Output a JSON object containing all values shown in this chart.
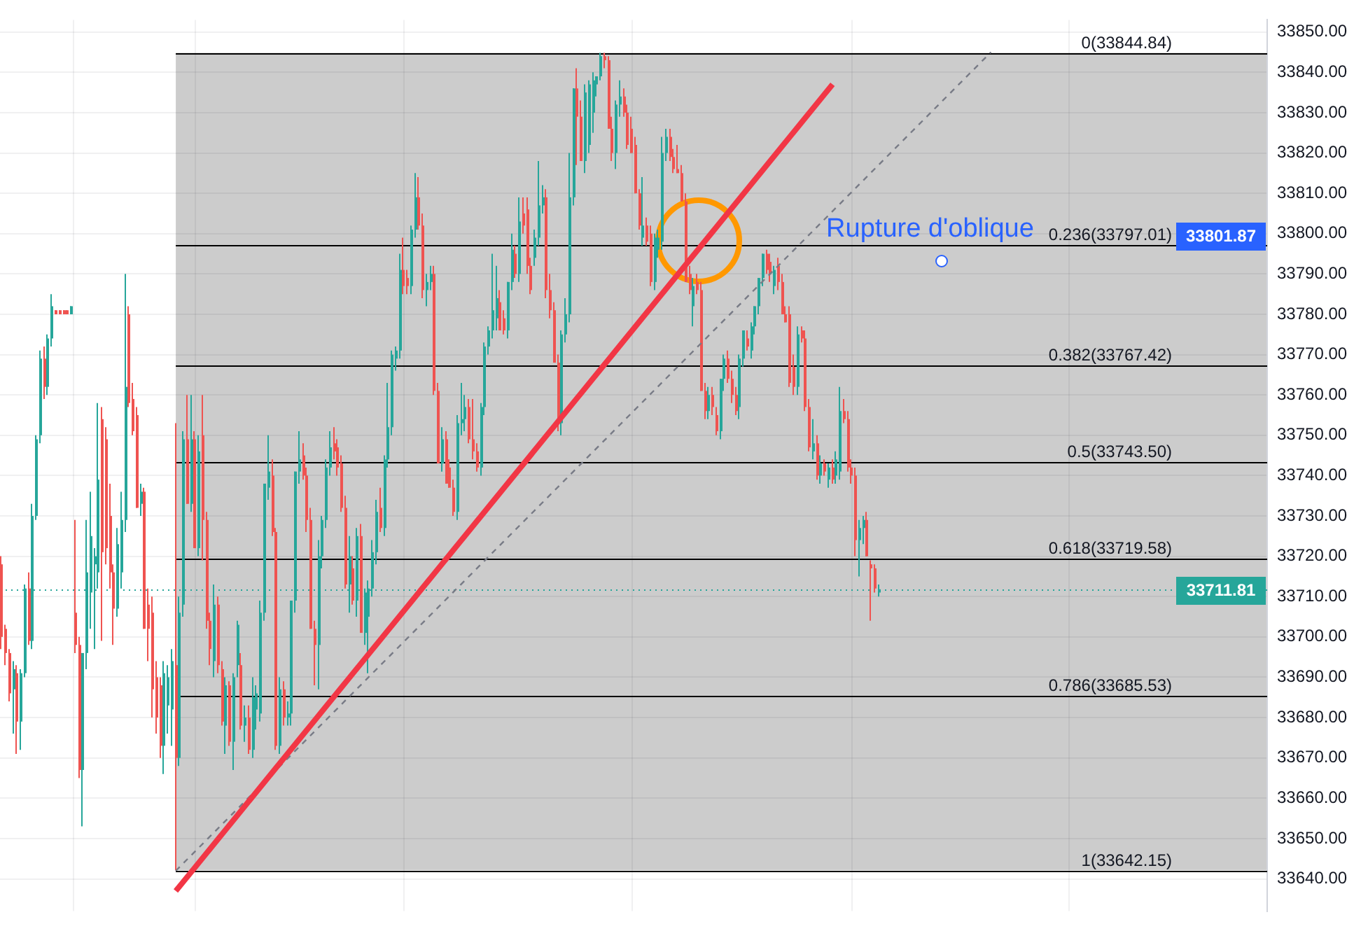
{
  "chart_data": {
    "type": "candlestick",
    "categories": [
      null,
      null,
      null,
      null,
      null,
      null,
      null,
      null,
      null,
      null,
      null,
      null,
      null,
      null,
      null,
      null,
      null,
      null,
      null,
      null,
      null,
      null,
      null,
      null,
      null,
      null,
      null,
      null,
      null,
      null,
      null,
      null,
      null,
      null,
      null,
      null,
      null,
      null,
      null,
      null,
      null,
      null,
      null,
      null,
      null,
      null,
      null,
      null,
      null,
      null,
      null,
      null,
      null,
      null,
      null,
      null,
      null,
      null,
      null,
      null,
      null,
      null,
      null,
      null,
      null,
      null,
      null,
      null,
      null,
      null,
      null,
      null,
      null,
      null,
      null,
      null,
      null,
      null,
      null,
      null,
      null,
      null,
      null,
      null,
      null,
      null,
      null,
      null,
      null,
      null,
      null,
      null,
      null,
      null,
      null,
      null,
      null,
      null,
      null,
      null,
      null,
      null,
      null,
      null,
      null,
      null,
      null,
      null,
      null,
      null,
      null,
      null,
      null,
      null,
      null,
      null,
      null,
      null,
      null,
      null,
      null,
      null,
      null,
      null,
      null,
      null,
      null,
      null,
      null,
      null,
      null,
      null,
      null,
      null,
      null,
      null,
      null,
      null,
      null,
      null,
      null,
      null,
      null,
      null,
      null,
      null,
      null,
      null,
      null,
      null,
      null,
      null,
      null,
      null,
      null,
      null,
      null,
      null,
      null,
      null,
      null,
      null,
      null,
      null,
      null,
      null,
      null,
      null,
      null,
      null,
      null,
      null,
      null,
      null,
      null,
      null,
      null,
      null,
      null,
      null,
      null,
      null,
      null,
      null,
      null,
      null,
      null,
      null,
      null,
      null,
      null,
      null,
      null,
      null,
      null,
      null,
      null,
      null,
      null,
      null,
      null,
      null,
      null,
      null,
      null,
      null,
      null,
      null,
      null,
      null,
      null,
      null,
      null,
      null,
      null,
      null,
      null,
      null,
      null,
      null,
      null,
      null,
      null,
      null,
      null,
      null,
      null,
      null,
      null,
      null,
      null,
      null,
      null,
      null,
      null,
      null,
      null,
      null,
      null,
      null,
      null,
      null,
      null,
      null,
      null,
      null,
      null,
      null,
      null,
      null,
      null,
      null,
      null,
      null,
      null,
      null,
      null,
      null,
      null,
      null,
      null,
      null,
      null,
      null,
      null,
      null,
      null,
      null,
      null,
      null,
      null,
      null,
      null,
      null,
      null,
      null,
      null,
      null,
      null,
      null,
      null,
      null,
      null,
      null,
      null,
      null,
      null,
      null,
      null,
      null,
      null,
      null,
      null,
      null,
      null,
      null,
      null,
      null,
      null,
      null,
      null,
      null,
      null,
      null,
      null,
      null,
      null,
      null,
      null,
      null,
      null,
      null,
      null,
      null,
      null,
      null,
      null,
      null,
      null,
      null,
      null,
      null,
      null,
      null,
      null,
      null,
      null,
      null
    ],
    "ohlc": [
      [
        33718,
        33720,
        33697,
        33700
      ],
      [
        33702,
        33703,
        33693,
        33696
      ],
      [
        33696,
        33697,
        33684,
        33686
      ],
      [
        33687,
        33694,
        33676,
        33692
      ],
      [
        33691,
        33693,
        33671,
        33679
      ],
      [
        33679,
        33692,
        33672,
        33691
      ],
      [
        33691,
        33713,
        33690,
        33712
      ],
      [
        33712,
        33716,
        33698,
        33699
      ],
      [
        33699,
        33733,
        33697,
        33730
      ],
      [
        33730,
        33750,
        33729,
        33749
      ],
      [
        33750,
        33771,
        33748,
        33769
      ],
      [
        33769,
        33772,
        33759,
        33762
      ],
      [
        33762,
        33775,
        33760,
        33774
      ],
      [
        33774,
        33785,
        33772,
        33782
      ],
      [
        33781,
        33781,
        33780,
        33780
      ],
      [
        33781,
        33781,
        33780,
        33780
      ],
      [
        33781,
        33781,
        33780,
        33780
      ],
      [
        33781,
        33781,
        33780,
        33780
      ],
      [
        33780,
        33782,
        33780,
        33782
      ],
      [
        33706,
        33729,
        33696,
        33698
      ],
      [
        33698,
        33700,
        33665,
        33667
      ],
      [
        33667,
        33696,
        33653,
        33696
      ],
      [
        33696,
        33729,
        33692,
        33716
      ],
      [
        33711,
        33736,
        33702,
        33725
      ],
      [
        33718,
        33722,
        33697,
        33720
      ],
      [
        33716,
        33758,
        33712,
        33739
      ],
      [
        33754,
        33757,
        33699,
        33721
      ],
      [
        33749,
        33752,
        33718,
        33722
      ],
      [
        33730,
        33738,
        33712,
        33716
      ],
      [
        33716,
        33718,
        33698,
        33707
      ],
      [
        33707,
        33727,
        33705,
        33723
      ],
      [
        33716,
        33736,
        33712,
        33729
      ],
      [
        33729,
        33790,
        33726,
        33762
      ],
      [
        33780,
        33782,
        33757,
        33758
      ],
      [
        33759,
        33763,
        33750,
        33751
      ],
      [
        33755,
        33757,
        33732,
        33732
      ],
      [
        33733,
        33738,
        33730,
        33736
      ],
      [
        33736,
        33737,
        33702,
        33702
      ],
      [
        33708,
        33712,
        33694,
        33702
      ],
      [
        33706,
        33710,
        33680,
        33687
      ],
      [
        33690,
        33694,
        33676,
        33680
      ],
      [
        33688,
        33690,
        33670,
        33673
      ],
      [
        33673,
        33694,
        33666,
        33691
      ],
      [
        33683,
        33693,
        33676,
        33690
      ],
      [
        33682,
        33697,
        33673,
        33694
      ],
      [
        33693,
        33753,
        33642.15,
        33670
      ],
      [
        33670,
        33710,
        33668,
        33706
      ],
      [
        33708,
        33751,
        33705,
        33749
      ],
      [
        33749,
        33760,
        33733,
        33733
      ],
      [
        33733,
        33760,
        33731,
        33749
      ],
      [
        33749,
        33751,
        33722,
        33722
      ],
      [
        33722,
        33750,
        33720,
        33746
      ],
      [
        33750,
        33760,
        33719,
        33729
      ],
      [
        33729,
        33731,
        33702,
        33704
      ],
      [
        33704,
        33706,
        33693,
        33697
      ],
      [
        33694,
        33713,
        33690,
        33708
      ],
      [
        33708,
        33710,
        33691,
        33693
      ],
      [
        33692,
        33694,
        33678,
        33679
      ],
      [
        33678,
        33690,
        33671,
        33688
      ],
      [
        33688,
        33689,
        33673,
        33674
      ],
      [
        33674,
        33691,
        33667,
        33690
      ],
      [
        33693,
        33704,
        33690,
        33703
      ],
      [
        33693,
        33696,
        33677,
        33678
      ],
      [
        33678,
        33683,
        33674,
        33680
      ],
      [
        33680,
        33683,
        33671,
        33672
      ],
      [
        33672,
        33690,
        33670,
        33685
      ],
      [
        33682,
        33688,
        33677,
        33686
      ],
      [
        33681,
        33709,
        33679,
        33706
      ],
      [
        33706,
        33738,
        33704,
        33738
      ],
      [
        33737,
        33750,
        33734,
        33741
      ],
      [
        33740,
        33744,
        33725,
        33726
      ],
      [
        33726,
        33727,
        33672,
        33673
      ],
      [
        33673,
        33690,
        33671,
        33687
      ],
      [
        33687,
        33689,
        33678,
        33680
      ],
      [
        33680,
        33684,
        33678,
        33681
      ],
      [
        33681,
        33709,
        33678,
        33709
      ],
      [
        33709,
        33741,
        33706,
        33741
      ],
      [
        33741,
        33751,
        33738,
        33744
      ],
      [
        33745,
        33748,
        33739,
        33740
      ],
      [
        33740,
        33742,
        33726,
        33729
      ],
      [
        33729,
        33732,
        33702,
        33702
      ],
      [
        33702,
        33704,
        33688,
        33698
      ],
      [
        33698,
        33724,
        33687,
        33720
      ],
      [
        33720,
        33730,
        33717,
        33729
      ],
      [
        33729,
        33744,
        33727,
        33742
      ],
      [
        33742,
        33751,
        33740,
        33747
      ],
      [
        33748,
        33752,
        33744,
        33746
      ],
      [
        33747,
        33749,
        33740,
        33742
      ],
      [
        33743,
        33745,
        33731,
        33732
      ],
      [
        33732,
        33735,
        33712,
        33713
      ],
      [
        33713,
        33725,
        33706,
        33720
      ],
      [
        33717,
        33720,
        33708,
        33709
      ],
      [
        33709,
        33727,
        33705,
        33725
      ],
      [
        33725,
        33728,
        33701,
        33701
      ],
      [
        33701,
        33712,
        33698,
        33711
      ],
      [
        33705,
        33714,
        33691,
        33712
      ],
      [
        33712,
        33724,
        33710,
        33721
      ],
      [
        33721,
        33734,
        33718,
        33731
      ],
      [
        33732,
        33737,
        33726,
        33727
      ],
      [
        33727,
        33745,
        33725,
        33744
      ],
      [
        33744,
        33763,
        33742,
        33752
      ],
      [
        33752,
        33771,
        33750,
        33770
      ],
      [
        33769,
        33772,
        33766,
        33771
      ],
      [
        33771,
        33795,
        33769,
        33791
      ],
      [
        33791,
        33799,
        33785,
        33787
      ],
      [
        33789,
        33791,
        33785,
        33787
      ],
      [
        33787,
        33802,
        33785,
        33801
      ],
      [
        33801,
        33815,
        33799,
        33809
      ],
      [
        33809,
        33814,
        33801,
        33802
      ],
      [
        33802,
        33805,
        33784,
        33786
      ],
      [
        33786,
        33790,
        33782,
        33788
      ],
      [
        33788,
        33792,
        33786,
        33790
      ],
      [
        33790,
        33792,
        33760,
        33761
      ],
      [
        33761,
        33763,
        33743,
        33743
      ],
      [
        33743,
        33752,
        33741,
        33749
      ],
      [
        33749,
        33751,
        33738,
        33738
      ],
      [
        33742,
        33744,
        33737,
        33737
      ],
      [
        33737,
        33739,
        33730,
        33731
      ],
      [
        33731,
        33755,
        33729,
        33753
      ],
      [
        33753,
        33763,
        33750,
        33754
      ],
      [
        33754,
        33760,
        33751,
        33757
      ],
      [
        33757,
        33759,
        33748,
        33749
      ],
      [
        33749,
        33759,
        33744,
        33746
      ],
      [
        33746,
        33748,
        33741,
        33742
      ],
      [
        33742,
        33758,
        33740,
        33757
      ],
      [
        33757,
        33773,
        33755,
        33772
      ],
      [
        33772,
        33777,
        33770,
        33776
      ],
      [
        33776,
        33795,
        33774,
        33781
      ],
      [
        33779,
        33792,
        33776,
        33784
      ],
      [
        33783,
        33786,
        33776,
        33776
      ],
      [
        33779,
        33781,
        33775,
        33776
      ],
      [
        33776,
        33788,
        33774,
        33788
      ],
      [
        33788,
        33800,
        33786,
        33796
      ],
      [
        33795,
        33797,
        33789,
        33790
      ],
      [
        33790,
        33809,
        33788,
        33803
      ],
      [
        33805,
        33809,
        33800,
        33802
      ],
      [
        33806,
        33809,
        33790,
        33792
      ],
      [
        33792,
        33794,
        33785,
        33786
      ],
      [
        33794,
        33801,
        33792,
        33799
      ],
      [
        33799,
        33818,
        33797,
        33807
      ],
      [
        33807,
        33812,
        33805,
        33809
      ],
      [
        33809,
        33811,
        33784,
        33786
      ],
      [
        33786,
        33790,
        33779,
        33781
      ],
      [
        33781,
        33783,
        33768,
        33768
      ],
      [
        33768,
        33770,
        33751,
        33753
      ],
      [
        33753,
        33776,
        33750,
        33775
      ],
      [
        33775,
        33784,
        33773,
        33780
      ],
      [
        33780,
        33820,
        33778,
        33809
      ],
      [
        33809,
        33836,
        33807,
        33836
      ],
      [
        33836,
        33841,
        33817,
        33829
      ],
      [
        33829,
        33833,
        33818,
        33818
      ],
      [
        33818,
        33837,
        33815,
        33835
      ],
      [
        33822,
        33838,
        33820,
        33837
      ],
      [
        33830,
        33840,
        33825,
        33838
      ],
      [
        33837,
        33839,
        33834,
        33839
      ],
      [
        33839,
        33844.84,
        33838,
        33844
      ],
      [
        33844,
        33844.84,
        33841,
        33843
      ],
      [
        33843,
        33844,
        33826,
        33826
      ],
      [
        33826,
        33829,
        33818,
        33820
      ],
      [
        33820,
        33833,
        33816,
        33832
      ],
      [
        33832,
        33838,
        33829,
        33834
      ],
      [
        33834,
        33836,
        33829,
        33830
      ],
      [
        33830,
        33832,
        33821,
        33822
      ],
      [
        33826,
        33829,
        33820,
        33820
      ],
      [
        33822,
        33824,
        33810,
        33810
      ],
      [
        33810,
        33811,
        33801,
        33802
      ],
      [
        33799,
        33814,
        33797,
        33802
      ],
      [
        33802,
        33804,
        33797,
        33798
      ],
      [
        33800,
        33802,
        33787,
        33788
      ],
      [
        33788,
        33800,
        33786,
        33799
      ],
      [
        33796,
        33801,
        33794,
        33799
      ],
      [
        33798,
        33824,
        33796,
        33820
      ],
      [
        33820,
        33826,
        33818,
        33824
      ],
      [
        33824,
        33826,
        33818,
        33819
      ],
      [
        33819,
        33821,
        33815,
        33816
      ],
      [
        33816,
        33822,
        33815,
        33815
      ],
      [
        33815,
        33817,
        33808,
        33808
      ],
      [
        33808,
        33810,
        33788,
        33788
      ],
      [
        33790,
        33792,
        33785,
        33786
      ],
      [
        33782,
        33789,
        33777,
        33787
      ],
      [
        33788,
        33790,
        33785,
        33786
      ],
      [
        33786,
        33788,
        33761,
        33761
      ],
      [
        33761,
        33763,
        33754,
        33756
      ],
      [
        33756,
        33762,
        33754,
        33760
      ],
      [
        33760,
        33762,
        33755,
        33757
      ],
      [
        33755,
        33757,
        33750,
        33751
      ],
      [
        33751,
        33764,
        33749,
        33764
      ],
      [
        33764,
        33770,
        33761,
        33769
      ],
      [
        33769,
        33771,
        33763,
        33764
      ],
      [
        33764,
        33766,
        33758,
        33760
      ],
      [
        33760,
        33762,
        33755,
        33756
      ],
      [
        33757,
        33770,
        33754,
        33769
      ],
      [
        33769,
        33776,
        33767,
        33776
      ],
      [
        33774,
        33776,
        33771,
        33772
      ],
      [
        33771,
        33778,
        33769,
        33777
      ],
      [
        33777,
        33782,
        33775,
        33782
      ],
      [
        33782,
        33789,
        33780,
        33789
      ],
      [
        33789,
        33795,
        33787,
        33795
      ],
      [
        33795,
        33796,
        33790,
        33791
      ],
      [
        33793,
        33795,
        33788,
        33790
      ],
      [
        33787,
        33792,
        33785,
        33791
      ],
      [
        33792,
        33794,
        33786,
        33788
      ],
      [
        33788,
        33790,
        33780,
        33780
      ],
      [
        33780,
        33782,
        33778,
        33778
      ],
      [
        33780,
        33782,
        33762,
        33763
      ],
      [
        33767,
        33770,
        33760,
        33762
      ],
      [
        33762,
        33777,
        33760,
        33775
      ],
      [
        33776,
        33777,
        33773,
        33774
      ],
      [
        33774,
        33776,
        33756,
        33757
      ],
      [
        33757,
        33759,
        33746,
        33747
      ],
      [
        33746,
        33754,
        33744,
        33748
      ],
      [
        33748,
        33750,
        33739,
        33740
      ],
      [
        33740,
        33745,
        33738,
        33743
      ],
      [
        33743,
        33744,
        33740,
        33741
      ],
      [
        33739,
        33743,
        33737,
        33742
      ],
      [
        33742,
        33744,
        33738,
        33739
      ],
      [
        33740,
        33746,
        33738,
        33744
      ],
      [
        33741,
        33762,
        33739,
        33756
      ],
      [
        33756,
        33759,
        33753,
        33754
      ],
      [
        33754,
        33756,
        33741,
        33742
      ],
      [
        33742,
        33744,
        33738,
        33740
      ],
      [
        33740,
        33742,
        33720,
        33724
      ],
      [
        33724,
        33729,
        33715,
        33727
      ],
      [
        33727,
        33730,
        33723,
        33729
      ],
      [
        33729,
        33731,
        33720,
        33720
      ],
      [
        33718,
        33719,
        33704,
        33717
      ],
      [
        33717,
        33718,
        33711,
        33712
      ],
      [
        33711,
        33713,
        33710,
        33711.81
      ],
      null,
      null,
      null,
      null,
      null,
      null,
      null,
      null,
      null,
      null,
      null,
      null,
      null,
      null,
      null,
      null,
      null,
      null,
      null,
      null,
      null,
      null,
      null,
      null,
      null,
      null,
      null,
      null,
      null,
      null,
      null,
      null,
      null,
      null,
      null,
      null,
      null,
      null,
      null,
      null,
      null,
      null,
      null,
      null,
      null,
      null,
      null,
      null,
      null,
      null,
      null,
      null,
      null,
      null,
      null,
      null,
      null,
      null,
      null,
      null,
      null,
      null,
      null,
      null,
      null,
      null,
      null,
      null,
      null,
      null,
      null,
      null,
      null,
      null,
      null,
      null,
      null,
      null,
      null,
      null,
      null,
      null,
      null,
      null,
      null,
      null,
      null,
      null,
      null,
      null,
      null,
      null,
      null,
      null,
      null,
      null,
      null,
      null,
      null,
      null
    ],
    "series": [
      {
        "type": "line",
        "color": "#f23645",
        "values": [
          null,
          null,
          null,
          null,
          null,
          null,
          null,
          null,
          null,
          null,
          null,
          null,
          null,
          null,
          null,
          null,
          null,
          null,
          null,
          null,
          null,
          null,
          null,
          null,
          null,
          null,
          null,
          null,
          null,
          null,
          null,
          null,
          null,
          null,
          null,
          null,
          null,
          null,
          null,
          null,
          null,
          null,
          null,
          null,
          null,
          33637,
          null,
          null,
          null,
          null,
          null,
          null,
          null,
          null,
          null,
          null,
          null,
          null,
          null,
          null,
          null,
          null,
          null,
          null,
          null,
          null,
          null,
          null,
          null,
          null,
          null,
          null,
          null,
          null,
          null,
          null,
          null,
          null,
          null,
          null,
          null,
          null,
          null,
          null,
          null,
          null,
          null,
          null,
          null,
          null,
          null,
          null,
          null,
          null,
          null,
          null,
          null,
          null,
          null,
          null,
          null,
          null,
          null,
          null,
          null,
          null,
          null,
          null,
          null,
          null,
          null,
          null,
          null,
          null,
          null,
          null,
          null,
          null,
          null,
          null,
          null,
          null,
          null,
          null,
          null,
          null,
          null,
          null,
          null,
          null,
          null,
          null,
          null,
          null,
          null,
          null,
          null,
          null,
          null,
          null,
          null,
          null,
          null,
          null,
          null,
          null,
          null,
          null,
          null,
          null,
          null,
          null,
          null,
          null,
          null,
          null,
          null,
          null,
          null,
          null,
          null,
          null,
          null,
          null,
          null,
          null,
          null,
          null,
          null,
          null,
          null,
          null,
          null,
          null,
          null,
          null,
          null,
          null,
          null,
          null,
          null,
          null,
          null,
          null,
          null,
          null,
          null,
          null,
          null,
          null,
          null,
          null,
          null,
          null,
          null,
          null,
          null,
          null,
          null,
          null,
          null,
          null,
          null,
          null,
          null,
          null,
          null,
          null,
          null,
          null,
          null,
          null,
          null,
          null,
          null,
          33837,
          null,
          null,
          null,
          null,
          null,
          null,
          null,
          null,
          null,
          null,
          null,
          null,
          null,
          null,
          null,
          null,
          null,
          null,
          null,
          null,
          null,
          null,
          null,
          null,
          null,
          null,
          null,
          null,
          null,
          null,
          null,
          null,
          null,
          null,
          null,
          null,
          null,
          null,
          null,
          null,
          null,
          null,
          null,
          null,
          null,
          null,
          null,
          null,
          null,
          null,
          null,
          null,
          null,
          null,
          null,
          null,
          null,
          null,
          null,
          null,
          null,
          null,
          null,
          null,
          null,
          null,
          null,
          null,
          null,
          null,
          null,
          null,
          null,
          null,
          null,
          null,
          null,
          null,
          null,
          null,
          null,
          null,
          null,
          null,
          null,
          null,
          null,
          null,
          null,
          null,
          null,
          null,
          null,
          null,
          null,
          null,
          null,
          null,
          null,
          null,
          null,
          null,
          null,
          null,
          null,
          null,
          null,
          null,
          null,
          null,
          null,
          null
        ]
      },
      {
        "type": "line",
        "color": "#787b86",
        "line_style": "dashed",
        "values": [
          null,
          null,
          null,
          null,
          null,
          null,
          null,
          null,
          null,
          null,
          null,
          null,
          null,
          null,
          null,
          null,
          null,
          null,
          null,
          null,
          null,
          null,
          null,
          null,
          null,
          null,
          null,
          null,
          null,
          null,
          null,
          null,
          null,
          null,
          null,
          null,
          null,
          null,
          null,
          null,
          null,
          null,
          null,
          null,
          null,
          33642,
          null,
          null,
          null,
          null,
          null,
          null,
          null,
          null,
          null,
          null,
          null,
          null,
          null,
          null,
          null,
          null,
          null,
          null,
          null,
          null,
          null,
          null,
          null,
          null,
          null,
          null,
          null,
          null,
          null,
          null,
          null,
          null,
          null,
          null,
          null,
          null,
          null,
          null,
          null,
          null,
          null,
          null,
          null,
          null,
          null,
          null,
          null,
          null,
          null,
          null,
          null,
          null,
          null,
          null,
          null,
          null,
          null,
          null,
          null,
          null,
          null,
          null,
          null,
          null,
          null,
          null,
          null,
          null,
          null,
          null,
          null,
          null,
          null,
          null,
          null,
          null,
          null,
          null,
          null,
          null,
          null,
          null,
          null,
          null,
          null,
          null,
          null,
          null,
          null,
          null,
          null,
          null,
          null,
          null,
          null,
          null,
          null,
          null,
          null,
          null,
          null,
          null,
          null,
          null,
          null,
          null,
          null,
          null,
          null,
          null,
          null,
          null,
          null,
          null,
          null,
          null,
          null,
          null,
          null,
          null,
          null,
          null,
          null,
          null,
          null,
          null,
          null,
          null,
          null,
          null,
          null,
          null,
          null,
          null,
          null,
          null,
          null,
          null,
          null,
          null,
          null,
          null,
          null,
          null,
          null,
          null,
          null,
          null,
          null,
          null,
          null,
          null,
          null,
          null,
          null,
          null,
          null,
          null,
          null,
          null,
          null,
          null,
          null,
          null,
          null,
          null,
          null,
          null,
          null,
          null,
          null,
          null,
          null,
          null,
          null,
          null,
          null,
          null,
          null,
          null,
          null,
          null,
          null,
          null,
          null,
          null,
          null,
          null,
          null,
          null,
          null,
          null,
          null,
          null,
          null,
          null,
          null,
          null,
          null,
          null,
          null,
          null,
          null,
          null,
          null,
          null,
          null,
          null,
          null,
          null,
          33845,
          null,
          null,
          null,
          null,
          null,
          null,
          null,
          null,
          null,
          null,
          null,
          null,
          null,
          null,
          null,
          null,
          null,
          null,
          null,
          null,
          null,
          null,
          null,
          null,
          null,
          null,
          null,
          null,
          null,
          null,
          null,
          null,
          null,
          null,
          null,
          null,
          null,
          null,
          null,
          null,
          null,
          null,
          null,
          null,
          null,
          null,
          null,
          null,
          null,
          null,
          null,
          null,
          null,
          null,
          null,
          null,
          null,
          null,
          null,
          null,
          null,
          null,
          null,
          null,
          null,
          null,
          null,
          null,
          null,
          null,
          null
        ]
      }
    ],
    "ylim": [
      33632,
      33853
    ],
    "yticks": [
      {
        "value": 33640,
        "label": "33640.00"
      },
      {
        "value": 33650,
        "label": "33650.00"
      },
      {
        "value": 33660,
        "label": "33660.00"
      },
      {
        "value": 33670,
        "label": "33670.00"
      },
      {
        "value": 33680,
        "label": "33680.00"
      },
      {
        "value": 33690,
        "label": "33690.00"
      },
      {
        "value": 33700,
        "label": "33700.00"
      },
      {
        "value": 33710,
        "label": "33710.00"
      },
      {
        "value": 33720,
        "label": "33720.00"
      },
      {
        "value": 33730,
        "label": "33730.00"
      },
      {
        "value": 33740,
        "label": "33740.00"
      },
      {
        "value": 33750,
        "label": "33750.00"
      },
      {
        "value": 33760,
        "label": "33760.00"
      },
      {
        "value": 33770,
        "label": "33770.00"
      },
      {
        "value": 33780,
        "label": "33780.00"
      },
      {
        "value": 33790,
        "label": "33790.00"
      },
      {
        "value": 33800,
        "label": "33800.00"
      },
      {
        "value": 33810,
        "label": "33810.00"
      },
      {
        "value": 33820,
        "label": "33820.00"
      },
      {
        "value": 33830,
        "label": "33830.00"
      },
      {
        "value": 33840,
        "label": "33840.00"
      },
      {
        "value": 33850,
        "label": "33850.00"
      }
    ],
    "ref_lines": [
      {
        "axis": "y",
        "value": 33844.84,
        "label": "0(33844.84)",
        "color": "#000000"
      },
      {
        "axis": "y",
        "value": 33797.01,
        "label": "0.236(33797.01)",
        "color": "#000000"
      },
      {
        "axis": "y",
        "value": 33767.42,
        "label": "0.382(33767.42)",
        "color": "#000000"
      },
      {
        "axis": "y",
        "value": 33743.5,
        "label": "0.5(33743.50)",
        "color": "#000000"
      },
      {
        "axis": "y",
        "value": 33719.58,
        "label": "0.618(33719.58)",
        "color": "#000000"
      },
      {
        "axis": "y",
        "value": 33685.53,
        "label": "0.786(33685.53)",
        "color": "#000000"
      },
      {
        "axis": "y",
        "value": 33642.15,
        "label": "1(33642.15)",
        "color": "#000000"
      },
      {
        "axis": "y",
        "value": 33711.81,
        "label": "33711.81",
        "color": "#26a69a",
        "line_style": "dotted"
      }
    ],
    "bands": [
      {
        "axis": "y",
        "from": 33642.15,
        "to": 33844.84,
        "color": "#cccccc"
      }
    ],
    "annotations": [
      {
        "text": "Rupture d'oblique",
        "y": 33797
      },
      "33801.87"
    ],
    "grid": true,
    "marker": "none",
    "tick_labels": "y"
  }
}
